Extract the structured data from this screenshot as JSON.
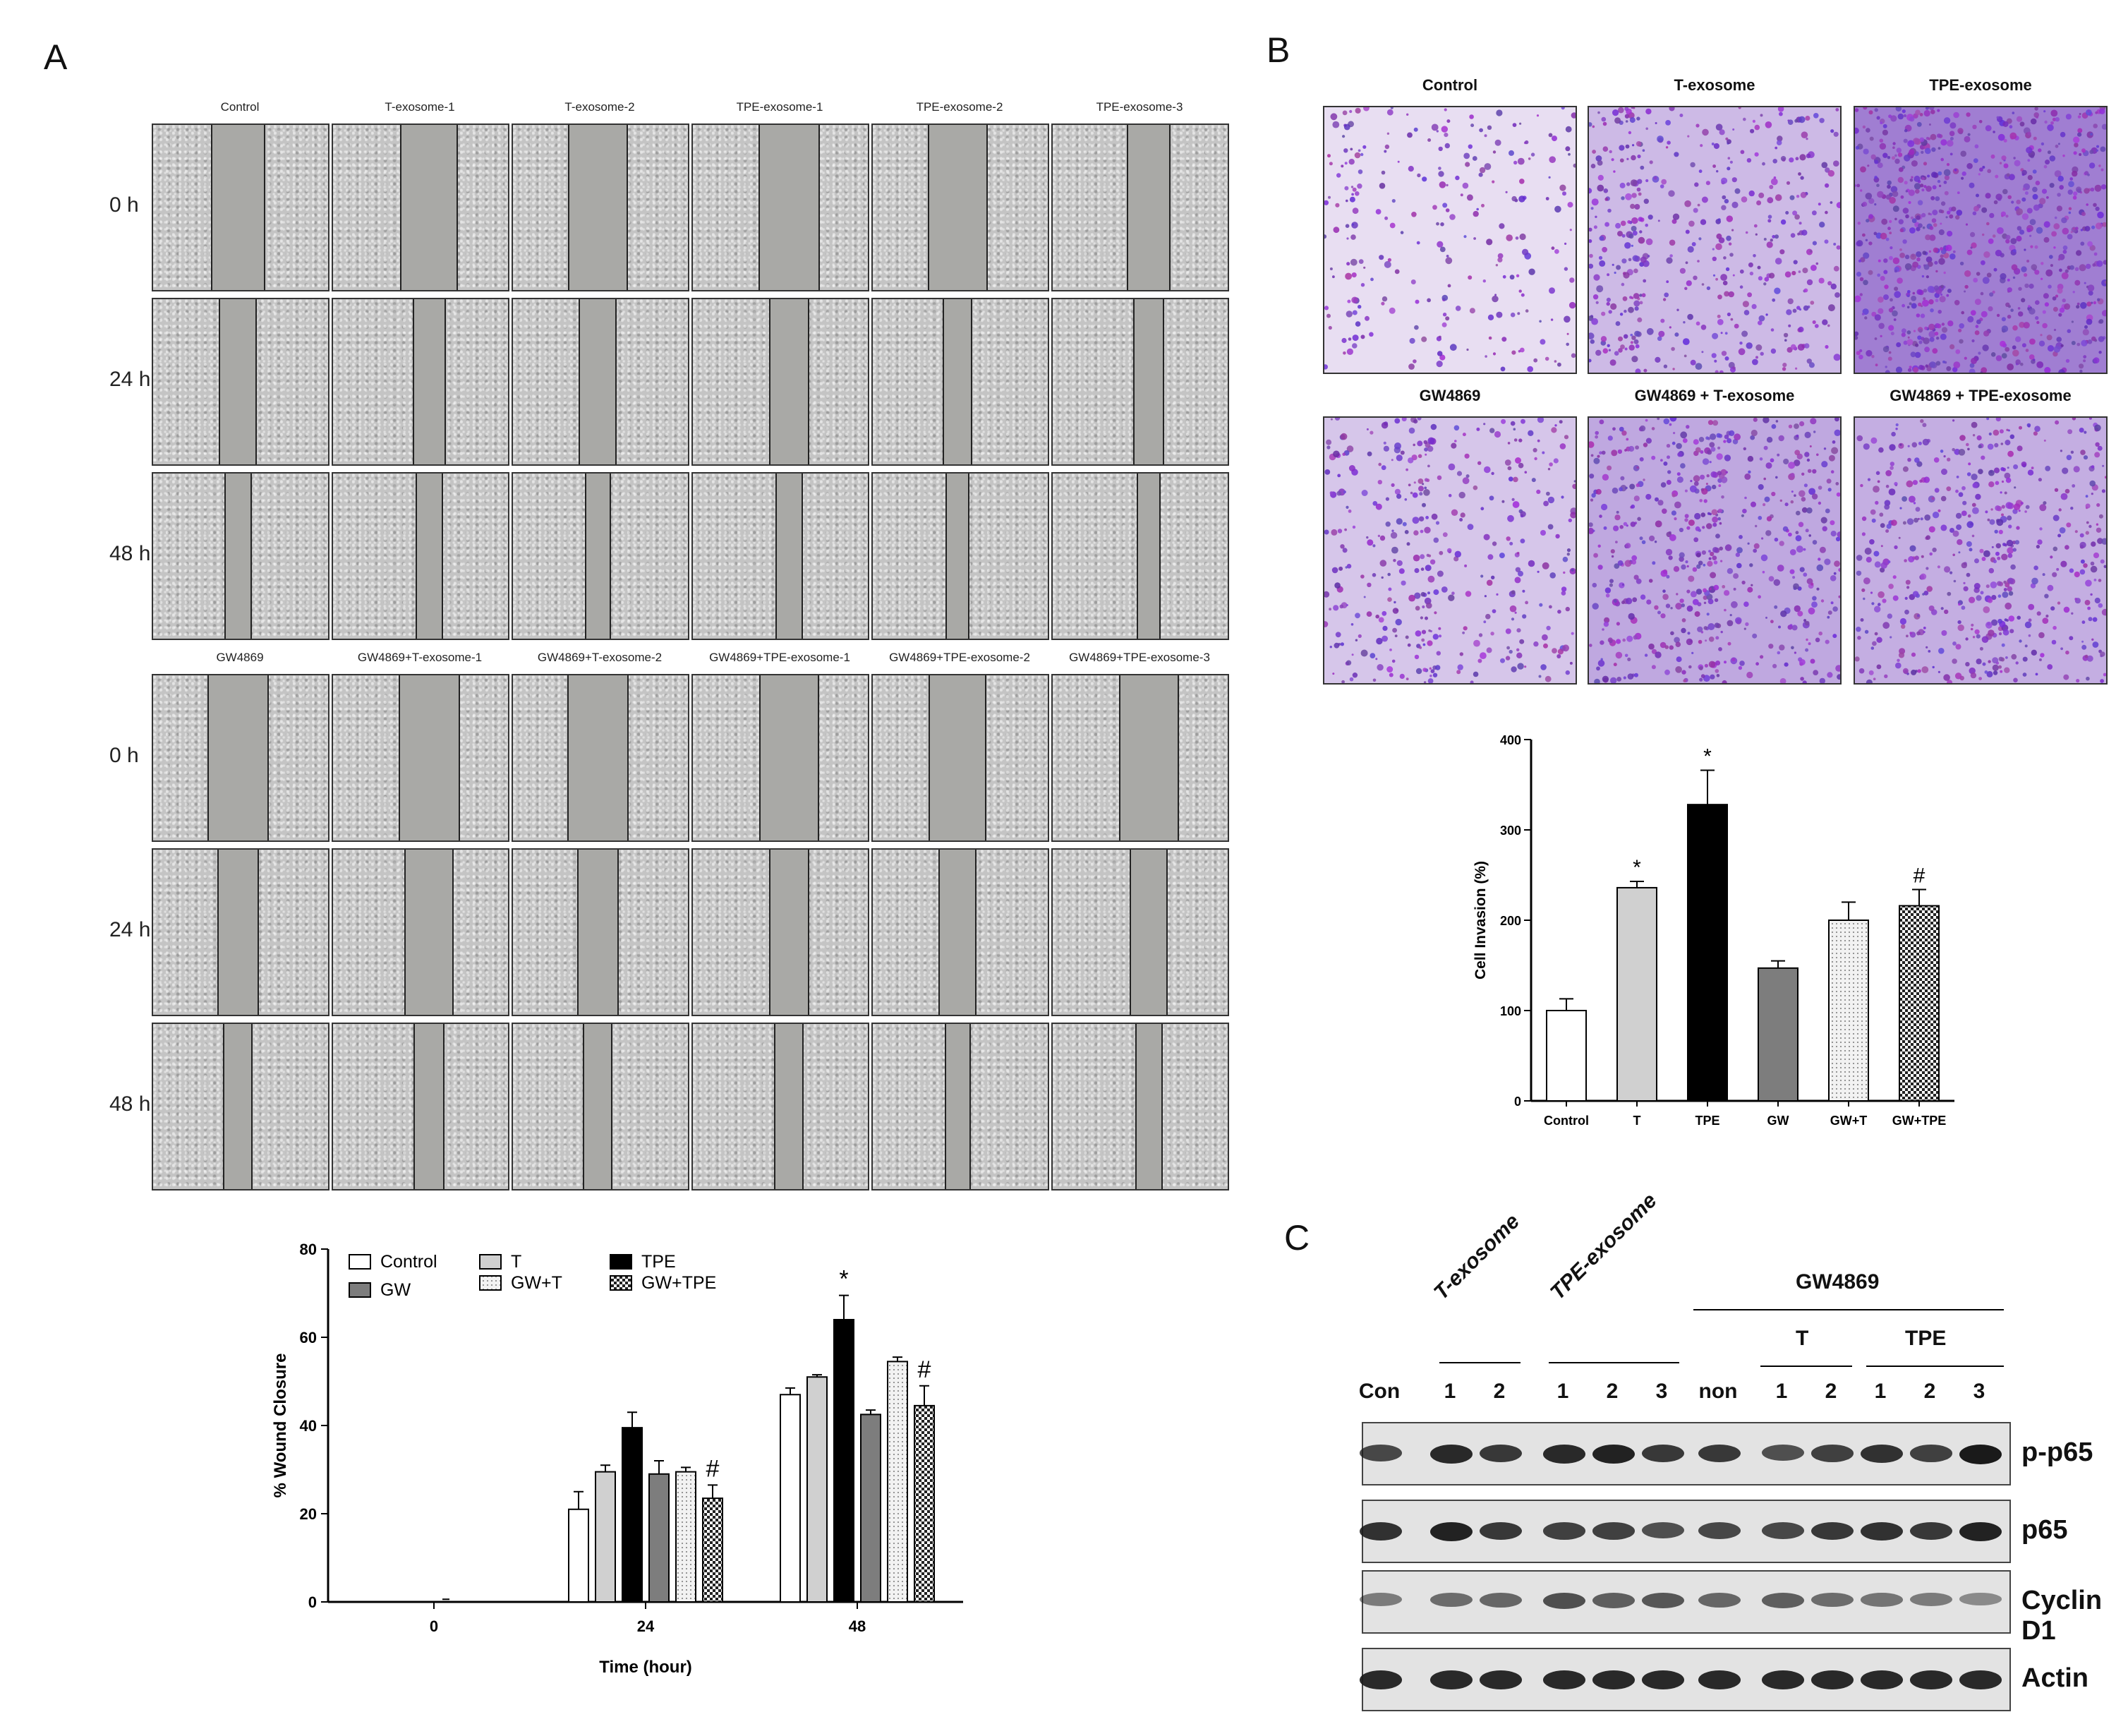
{
  "panels": {
    "a": "A",
    "b": "B",
    "c": "C"
  },
  "panel_a": {
    "top_columns": [
      "Control",
      "T-exosome-1",
      "T-exosome-2",
      "TPE-exosome-1",
      "TPE-exosome-2",
      "TPE-exosome-3"
    ],
    "bottom_columns": [
      "GW4869",
      "GW4869+T-exosome-1",
      "GW4869+T-exosome-2",
      "GW4869+TPE-exosome-1",
      "GW4869+TPE-exosome-2",
      "GW4869+TPE-exosome-3"
    ],
    "rows": [
      "0 h",
      "24 h",
      "48 h"
    ],
    "gap_fraction": [
      [
        0.29,
        0.31,
        0.32,
        0.33,
        0.32,
        0.23
      ],
      [
        0.2,
        0.17,
        0.2,
        0.21,
        0.15,
        0.16
      ],
      [
        0.14,
        0.14,
        0.13,
        0.14,
        0.12,
        0.12
      ]
    ],
    "gap_fraction_bottom": [
      [
        0.33,
        0.33,
        0.33,
        0.32,
        0.31,
        0.32
      ],
      [
        0.22,
        0.26,
        0.22,
        0.21,
        0.2,
        0.2
      ],
      [
        0.15,
        0.16,
        0.15,
        0.15,
        0.13,
        0.14
      ]
    ]
  },
  "panel_b": {
    "images": [
      "Control",
      "T-exosome",
      "TPE-exosome",
      "GW4869",
      "GW4869 + T-exosome",
      "GW4869 + TPE-exosome"
    ],
    "density": [
      0.15,
      0.45,
      0.95,
      0.35,
      0.6,
      0.55
    ]
  },
  "panel_c": {
    "lane_top": [
      "Con",
      "1",
      "2",
      "1",
      "2",
      "3",
      "non",
      "1",
      "2",
      "1",
      "2",
      "3"
    ],
    "group_t": "T-exosome",
    "group_tpe": "TPE-exosome",
    "group_gw": "GW4869",
    "sub_t": "T",
    "sub_tpe": "TPE",
    "blots": [
      "p-p65",
      "p65",
      "Cyclin D1",
      "Actin"
    ],
    "intensity": [
      [
        0.7,
        0.9,
        0.8,
        0.9,
        0.95,
        0.8,
        0.8,
        0.65,
        0.75,
        0.85,
        0.75,
        1.0
      ],
      [
        0.85,
        0.95,
        0.8,
        0.75,
        0.75,
        0.65,
        0.7,
        0.7,
        0.8,
        0.85,
        0.8,
        0.95
      ],
      [
        0.35,
        0.45,
        0.5,
        0.65,
        0.55,
        0.6,
        0.5,
        0.55,
        0.45,
        0.4,
        0.35,
        0.25
      ],
      [
        0.9,
        0.9,
        0.9,
        0.9,
        0.9,
        0.9,
        0.9,
        0.9,
        0.9,
        0.9,
        0.9,
        0.9
      ]
    ]
  },
  "chart_data": [
    {
      "type": "bar",
      "panel": "A",
      "xlabel": "Time (hour)",
      "ylabel": "% Wound Closure",
      "ylim": [
        0,
        80
      ],
      "yticks": [
        0,
        20,
        40,
        60,
        80
      ],
      "categories": [
        "0",
        "24",
        "48"
      ],
      "series": [
        {
          "name": "Control",
          "values": [
            0,
            21,
            47
          ],
          "err": [
            0,
            4,
            1.5
          ],
          "color": "#ffffff",
          "pattern": "none"
        },
        {
          "name": "T",
          "values": [
            0,
            29.5,
            51
          ],
          "err": [
            0,
            1.5,
            0.5
          ],
          "color": "#d0d0d0",
          "pattern": "none"
        },
        {
          "name": "TPE",
          "values": [
            0,
            39.5,
            64
          ],
          "err": [
            0,
            3.5,
            5.5
          ],
          "color": "#000000",
          "pattern": "none"
        },
        {
          "name": "GW",
          "values": [
            0,
            29,
            42.5
          ],
          "err": [
            0,
            3,
            1
          ],
          "color": "#7d7d7d",
          "pattern": "none"
        },
        {
          "name": "GW+T",
          "values": [
            0,
            29.5,
            54.5
          ],
          "err": [
            0,
            1,
            1
          ],
          "color": "#e6e6e6",
          "pattern": "dots"
        },
        {
          "name": "GW+TPE",
          "values": [
            0,
            23.5,
            44.5
          ],
          "err": [
            0,
            3,
            4.5
          ],
          "color": "#ffffff",
          "pattern": "check"
        }
      ],
      "annotations": [
        {
          "series": "TPE",
          "category": "48",
          "text": "*"
        },
        {
          "series": "GW+TPE",
          "category": "24",
          "text": "#"
        },
        {
          "series": "GW+TPE",
          "category": "48",
          "text": "#"
        }
      ]
    },
    {
      "type": "bar",
      "panel": "B",
      "ylabel": "Cell Invasion (%)",
      "ylim": [
        0,
        400
      ],
      "yticks": [
        0,
        100,
        200,
        300,
        400
      ],
      "categories": [
        "Control",
        "T",
        "TPE",
        "GW",
        "GW+T",
        "GW+TPE"
      ],
      "values": [
        100,
        236,
        328,
        147,
        200,
        216
      ],
      "err": [
        13,
        7,
        38,
        8,
        20,
        18
      ],
      "colors": [
        "#ffffff",
        "#d0d0d0",
        "#000000",
        "#7d7d7d",
        "#e6e6e6",
        "#ffffff"
      ],
      "patterns": [
        "none",
        "none",
        "none",
        "none",
        "dots",
        "check"
      ],
      "annotations": [
        "",
        "*",
        "*",
        "",
        "",
        "#"
      ]
    }
  ]
}
